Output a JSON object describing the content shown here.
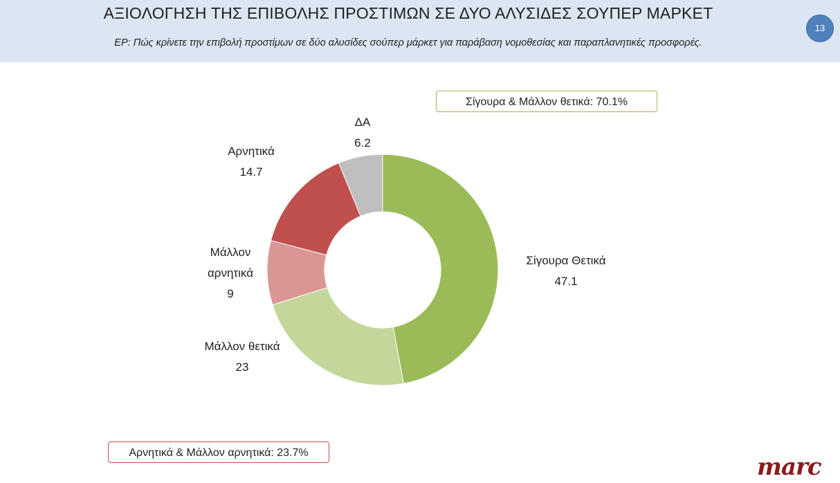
{
  "header": {
    "title": "ΑΞΙΟΛΟΓΗΣΗ ΤΗΣ ΕΠΙΒΟΛΗΣ ΠΡΟΣΤΙΜΩΝ ΣΕ ΔΥΟ ΑΛΥΣΙΔΕΣ ΣΟΥΠΕΡ ΜΑΡΚΕΤ",
    "subtitle": "ΕΡ: Πώς κρίνετε την επιβολή προστίμων σε δύο αλυσίδες σούπερ μάρκετ για παράβαση νομοθεσίας και παραπλανητικές προσφορές.",
    "page_number": "13"
  },
  "callouts": {
    "positive": "Σίγουρα & Μάλλον θετικά: 70.1%",
    "negative": "Αρνητικά & Μάλλον αρνητικά: 23.7%"
  },
  "logo": "marc",
  "chart_data": {
    "type": "pie",
    "donut": true,
    "slices": [
      {
        "label": "Σίγουρα Θετικά",
        "value": 47.1,
        "color": "#9bbb59"
      },
      {
        "label": "Μάλλον θετικά",
        "value": 23,
        "color": "#c4d79b"
      },
      {
        "label": "Μάλλον αρνητικά",
        "value": 9,
        "color": "#da9694"
      },
      {
        "label": "Αρνητικά",
        "value": 14.7,
        "color": "#c0504d"
      },
      {
        "label": "ΔΑ",
        "value": 6.2,
        "color": "#bfbfbf"
      }
    ]
  }
}
